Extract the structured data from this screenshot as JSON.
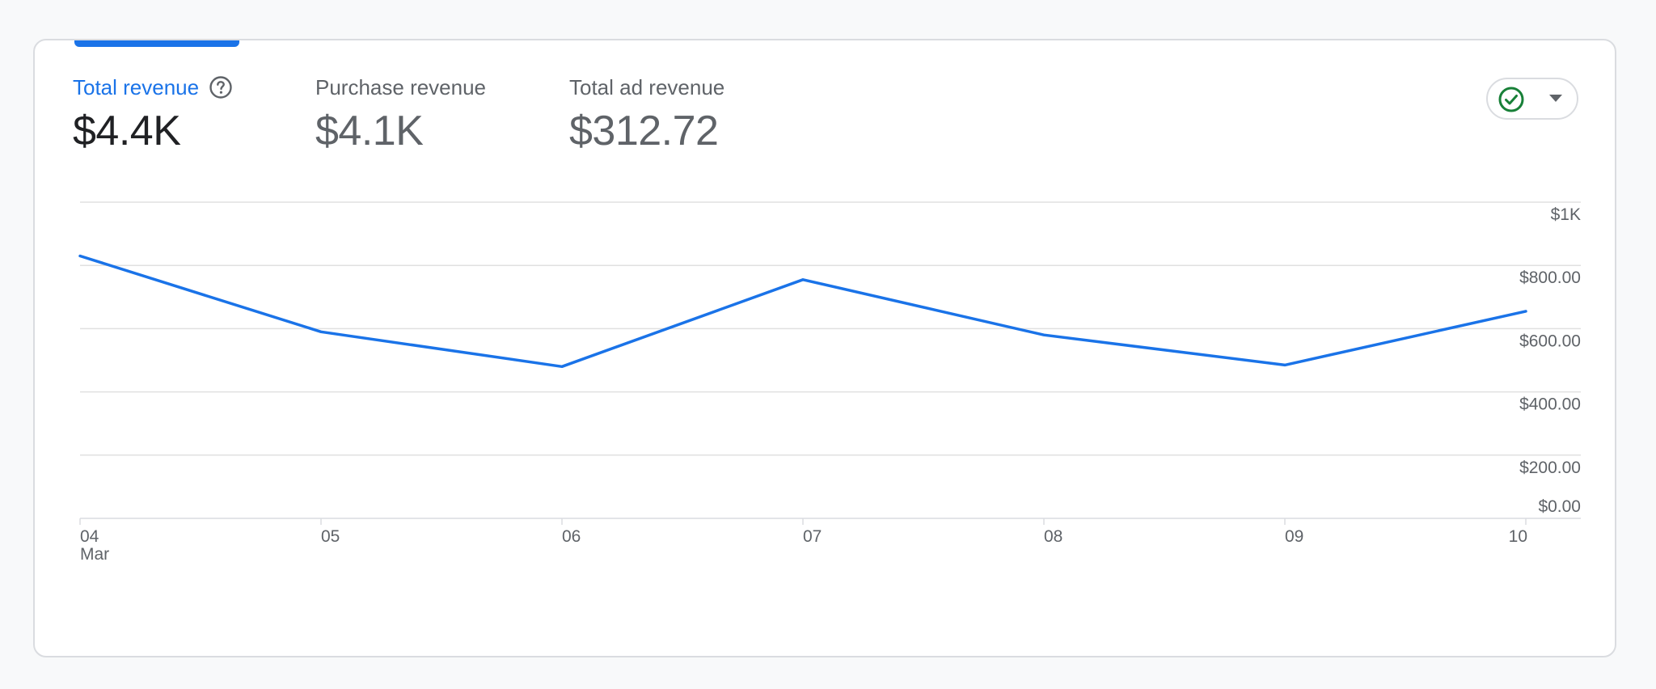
{
  "metrics": [
    {
      "label": "Total revenue",
      "value": "$4.4K",
      "active": true
    },
    {
      "label": "Purchase revenue",
      "value": "$4.1K",
      "active": false
    },
    {
      "label": "Total ad revenue",
      "value": "$312.72",
      "active": false
    }
  ],
  "status": {
    "icon": "check-circle-icon",
    "dropdown_icon": "caret-down-icon",
    "color": "#188038"
  },
  "colors": {
    "accent": "#1a73e8",
    "line": "#1a73e8",
    "grid": "#e0e0e0"
  },
  "chart_data": {
    "type": "line",
    "categories": [
      "04",
      "05",
      "06",
      "07",
      "08",
      "09",
      "10"
    ],
    "x_sublabel": "Mar",
    "values": [
      830,
      590,
      480,
      755,
      580,
      485,
      655
    ],
    "y_ticks": [
      {
        "value": 1000,
        "label": "$1K"
      },
      {
        "value": 800,
        "label": "$800.00"
      },
      {
        "value": 600,
        "label": "$600.00"
      },
      {
        "value": 400,
        "label": "$400.00"
      },
      {
        "value": 200,
        "label": "$200.00"
      },
      {
        "value": 0,
        "label": "$0.00"
      }
    ],
    "ylim": [
      0,
      1000
    ],
    "grid": true
  }
}
